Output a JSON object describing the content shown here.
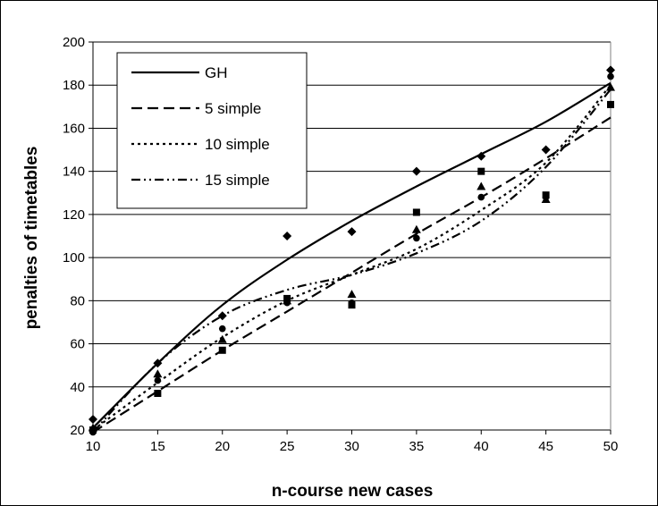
{
  "chart_data": {
    "type": "scatter",
    "xlabel": "n-course new cases",
    "ylabel": "penalties of timetables",
    "xlim": [
      10,
      50
    ],
    "ylim": [
      20,
      200
    ],
    "xticks": [
      "10",
      "15",
      "20",
      "25",
      "30",
      "35",
      "40",
      "45",
      "50"
    ],
    "yticks": [
      "20",
      "40",
      "60",
      "80",
      "100",
      "120",
      "140",
      "160",
      "180",
      "200"
    ],
    "grid": "horizontal",
    "legend_position": "top-left",
    "x": [
      10,
      15,
      20,
      25,
      30,
      35,
      40,
      45,
      50
    ],
    "series": [
      {
        "name": "GH",
        "marker": "diamond",
        "line_style": "solid",
        "values": [
          25,
          51,
          73,
          110,
          112,
          140,
          147,
          150,
          187
        ],
        "trend": [
          21,
          51,
          78,
          99,
          117,
          133,
          148,
          163,
          181
        ]
      },
      {
        "name": "5 simple",
        "marker": "square",
        "line_style": "dashed",
        "values": [
          20,
          37,
          57,
          81,
          78,
          121,
          140,
          129,
          171
        ],
        "trend": [
          19,
          38,
          57,
          75,
          93,
          111,
          128,
          146,
          165
        ]
      },
      {
        "name": "10 simple",
        "marker": "triangle",
        "line_style": "dotted",
        "values": [
          21,
          46,
          62,
          80,
          83,
          113,
          133,
          127,
          179
        ],
        "trend": [
          20,
          42,
          63,
          80,
          92,
          104,
          122,
          144,
          180
        ]
      },
      {
        "name": "15 simple",
        "marker": "circle",
        "line_style": "dash-dot-dot",
        "values": [
          19,
          43,
          67,
          79,
          79,
          109,
          128,
          128,
          184
        ],
        "trend": [
          19,
          51,
          73,
          85,
          92,
          102,
          117,
          142,
          178
        ]
      }
    ]
  }
}
